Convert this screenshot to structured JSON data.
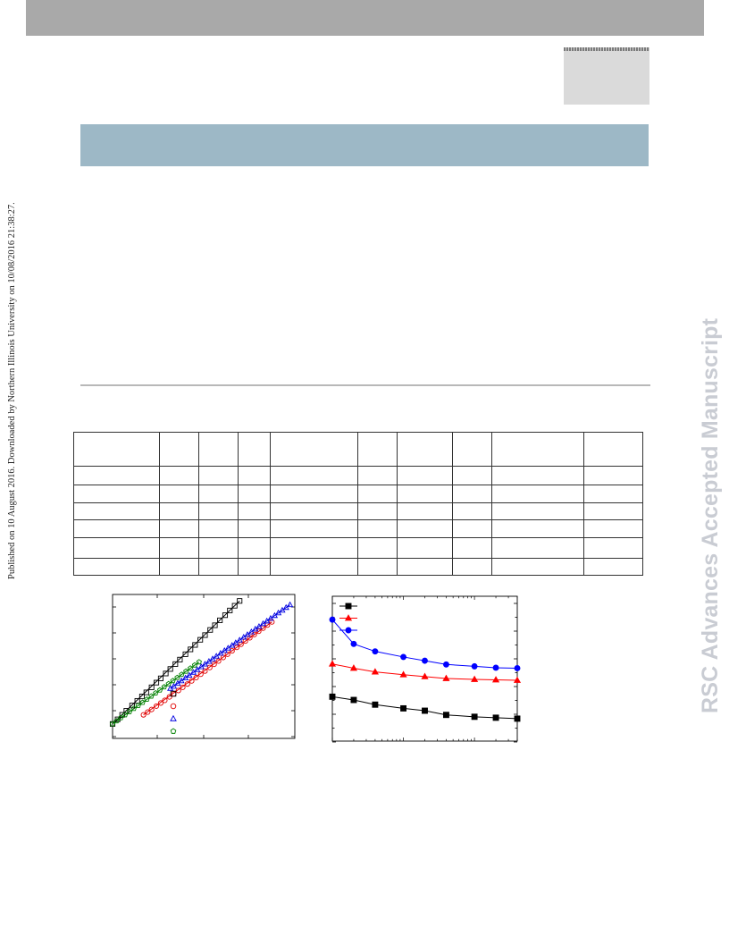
{
  "side_note": "Published on 10 August 2016. Downloaded by Northern Illinois University on 10/08/2016 21:38:27.",
  "watermark": "RSC Advances Accepted Manuscript",
  "table": {
    "columns": 10,
    "rows": 7
  },
  "chart_data": [
    {
      "type": "scatter",
      "xscale": "log",
      "yscale": "log",
      "grid": false,
      "legend": {
        "placement": "bottom-center",
        "markers": [
          "square",
          "circle",
          "triangle",
          "pentagon"
        ]
      },
      "series": [
        {
          "marker": "square",
          "color": "#000000",
          "x": [
            1,
            1.1,
            1.2,
            1.3,
            1.45,
            1.6,
            1.75,
            1.9,
            2.1,
            2.3,
            2.5,
            2.75,
            3.0,
            3.3,
            3.6,
            4.0,
            4.4,
            4.8,
            5.3,
            5.8,
            6.4,
            7.0,
            7.7,
            8.5,
            9.3,
            10.2,
            11.2
          ],
          "y": [
            1.0,
            1.11,
            1.23,
            1.35,
            1.52,
            1.69,
            1.87,
            2.05,
            2.3,
            2.56,
            2.82,
            3.15,
            3.49,
            3.9,
            4.32,
            4.88,
            5.45,
            6.03,
            6.78,
            7.54,
            8.48,
            9.43,
            10.55,
            11.86,
            13.2,
            14.7,
            16.4
          ]
        },
        {
          "marker": "circle",
          "color": "#e00000",
          "x": [
            1.8,
            1.95,
            2.1,
            2.3,
            2.5,
            2.7,
            2.95,
            3.2,
            3.5,
            3.8,
            4.15,
            4.5,
            4.9,
            5.35,
            5.8,
            6.35,
            6.9,
            7.5,
            8.2,
            8.9,
            9.7,
            10.6,
            11.5,
            12.5,
            13.6,
            14.8,
            16.1,
            17.5,
            19.0,
            20.7
          ],
          "y": [
            1.23,
            1.31,
            1.39,
            1.5,
            1.61,
            1.71,
            1.85,
            1.98,
            2.14,
            2.3,
            2.48,
            2.66,
            2.87,
            3.1,
            3.33,
            3.61,
            3.88,
            4.18,
            4.53,
            4.88,
            5.27,
            5.7,
            6.12,
            6.59,
            7.09,
            7.64,
            8.22,
            8.83,
            9.47,
            10.18
          ]
        },
        {
          "marker": "triangle",
          "color": "#0000e0",
          "x": [
            3.0,
            3.2,
            3.45,
            3.7,
            4.0,
            4.3,
            4.65,
            5.0,
            5.4,
            5.8,
            6.25,
            6.7,
            7.2,
            7.8,
            8.4,
            9.0,
            9.7,
            10.4,
            11.2,
            12.1,
            13.0,
            14.0,
            15.1,
            16.2,
            17.5,
            18.8,
            20.2,
            21.8,
            23.4,
            25.2,
            27.1,
            29.2
          ],
          "y": [
            2.24,
            2.35,
            2.51,
            2.66,
            2.84,
            3.02,
            3.23,
            3.43,
            3.66,
            3.89,
            4.14,
            4.38,
            4.66,
            4.98,
            5.29,
            5.6,
            5.96,
            6.32,
            6.72,
            7.17,
            7.61,
            8.1,
            8.63,
            9.15,
            9.76,
            10.37,
            11.01,
            11.74,
            12.46,
            13.26,
            14.1,
            15.0
          ]
        },
        {
          "marker": "pentagon",
          "color": "#008000",
          "x": [
            1,
            1.08,
            1.17,
            1.27,
            1.38,
            1.5,
            1.63,
            1.77,
            1.92,
            2.09,
            2.27,
            2.46,
            2.67,
            2.9,
            3.15,
            3.42,
            3.72,
            4.04,
            4.39,
            4.77,
            5.18
          ],
          "y": [
            1.0,
            1.07,
            1.15,
            1.23,
            1.32,
            1.42,
            1.52,
            1.63,
            1.75,
            1.88,
            2.02,
            2.16,
            2.32,
            2.49,
            2.67,
            2.87,
            3.08,
            3.31,
            3.55,
            3.81,
            4.09
          ]
        }
      ],
      "fit_lines": [
        {
          "color": "#000000",
          "x": [
            1,
            11.2
          ],
          "y": [
            1.0,
            16.4
          ]
        },
        {
          "color": "#e00000",
          "x": [
            1.8,
            20.7
          ],
          "y": [
            1.23,
            10.18
          ]
        },
        {
          "color": "#0000e0",
          "x": [
            3.0,
            29.2
          ],
          "y": [
            2.24,
            15.0
          ]
        },
        {
          "color": "#008000",
          "x": [
            1,
            5.18
          ],
          "y": [
            1.0,
            4.09
          ]
        }
      ],
      "xlim": [
        1,
        32
      ],
      "ylim": [
        0.72,
        19
      ]
    },
    {
      "type": "line",
      "xscale": "log",
      "grid": false,
      "legend": {
        "placement": "top-left"
      },
      "series": [
        {
          "marker": "square",
          "color": "#000000",
          "x": [
            1,
            2,
            4,
            10,
            20,
            40,
            100,
            200,
            400
          ],
          "y": [
            1.45,
            1.38,
            1.28,
            1.2,
            1.15,
            1.06,
            1.02,
            1.0,
            0.98
          ]
        },
        {
          "marker": "triangle",
          "color": "#ff0000",
          "x": [
            1,
            2,
            4,
            10,
            20,
            40,
            100,
            200,
            400
          ],
          "y": [
            2.15,
            2.06,
            1.98,
            1.92,
            1.88,
            1.84,
            1.82,
            1.81,
            1.8
          ]
        },
        {
          "marker": "circle",
          "color": "#0000ff",
          "x": [
            1,
            2,
            4,
            10,
            20,
            40,
            100,
            200,
            400
          ],
          "y": [
            3.1,
            2.58,
            2.42,
            2.3,
            2.22,
            2.14,
            2.1,
            2.07,
            2.06
          ]
        }
      ],
      "xlim": [
        1,
        400
      ],
      "ylim": [
        0.5,
        3.6
      ]
    }
  ]
}
